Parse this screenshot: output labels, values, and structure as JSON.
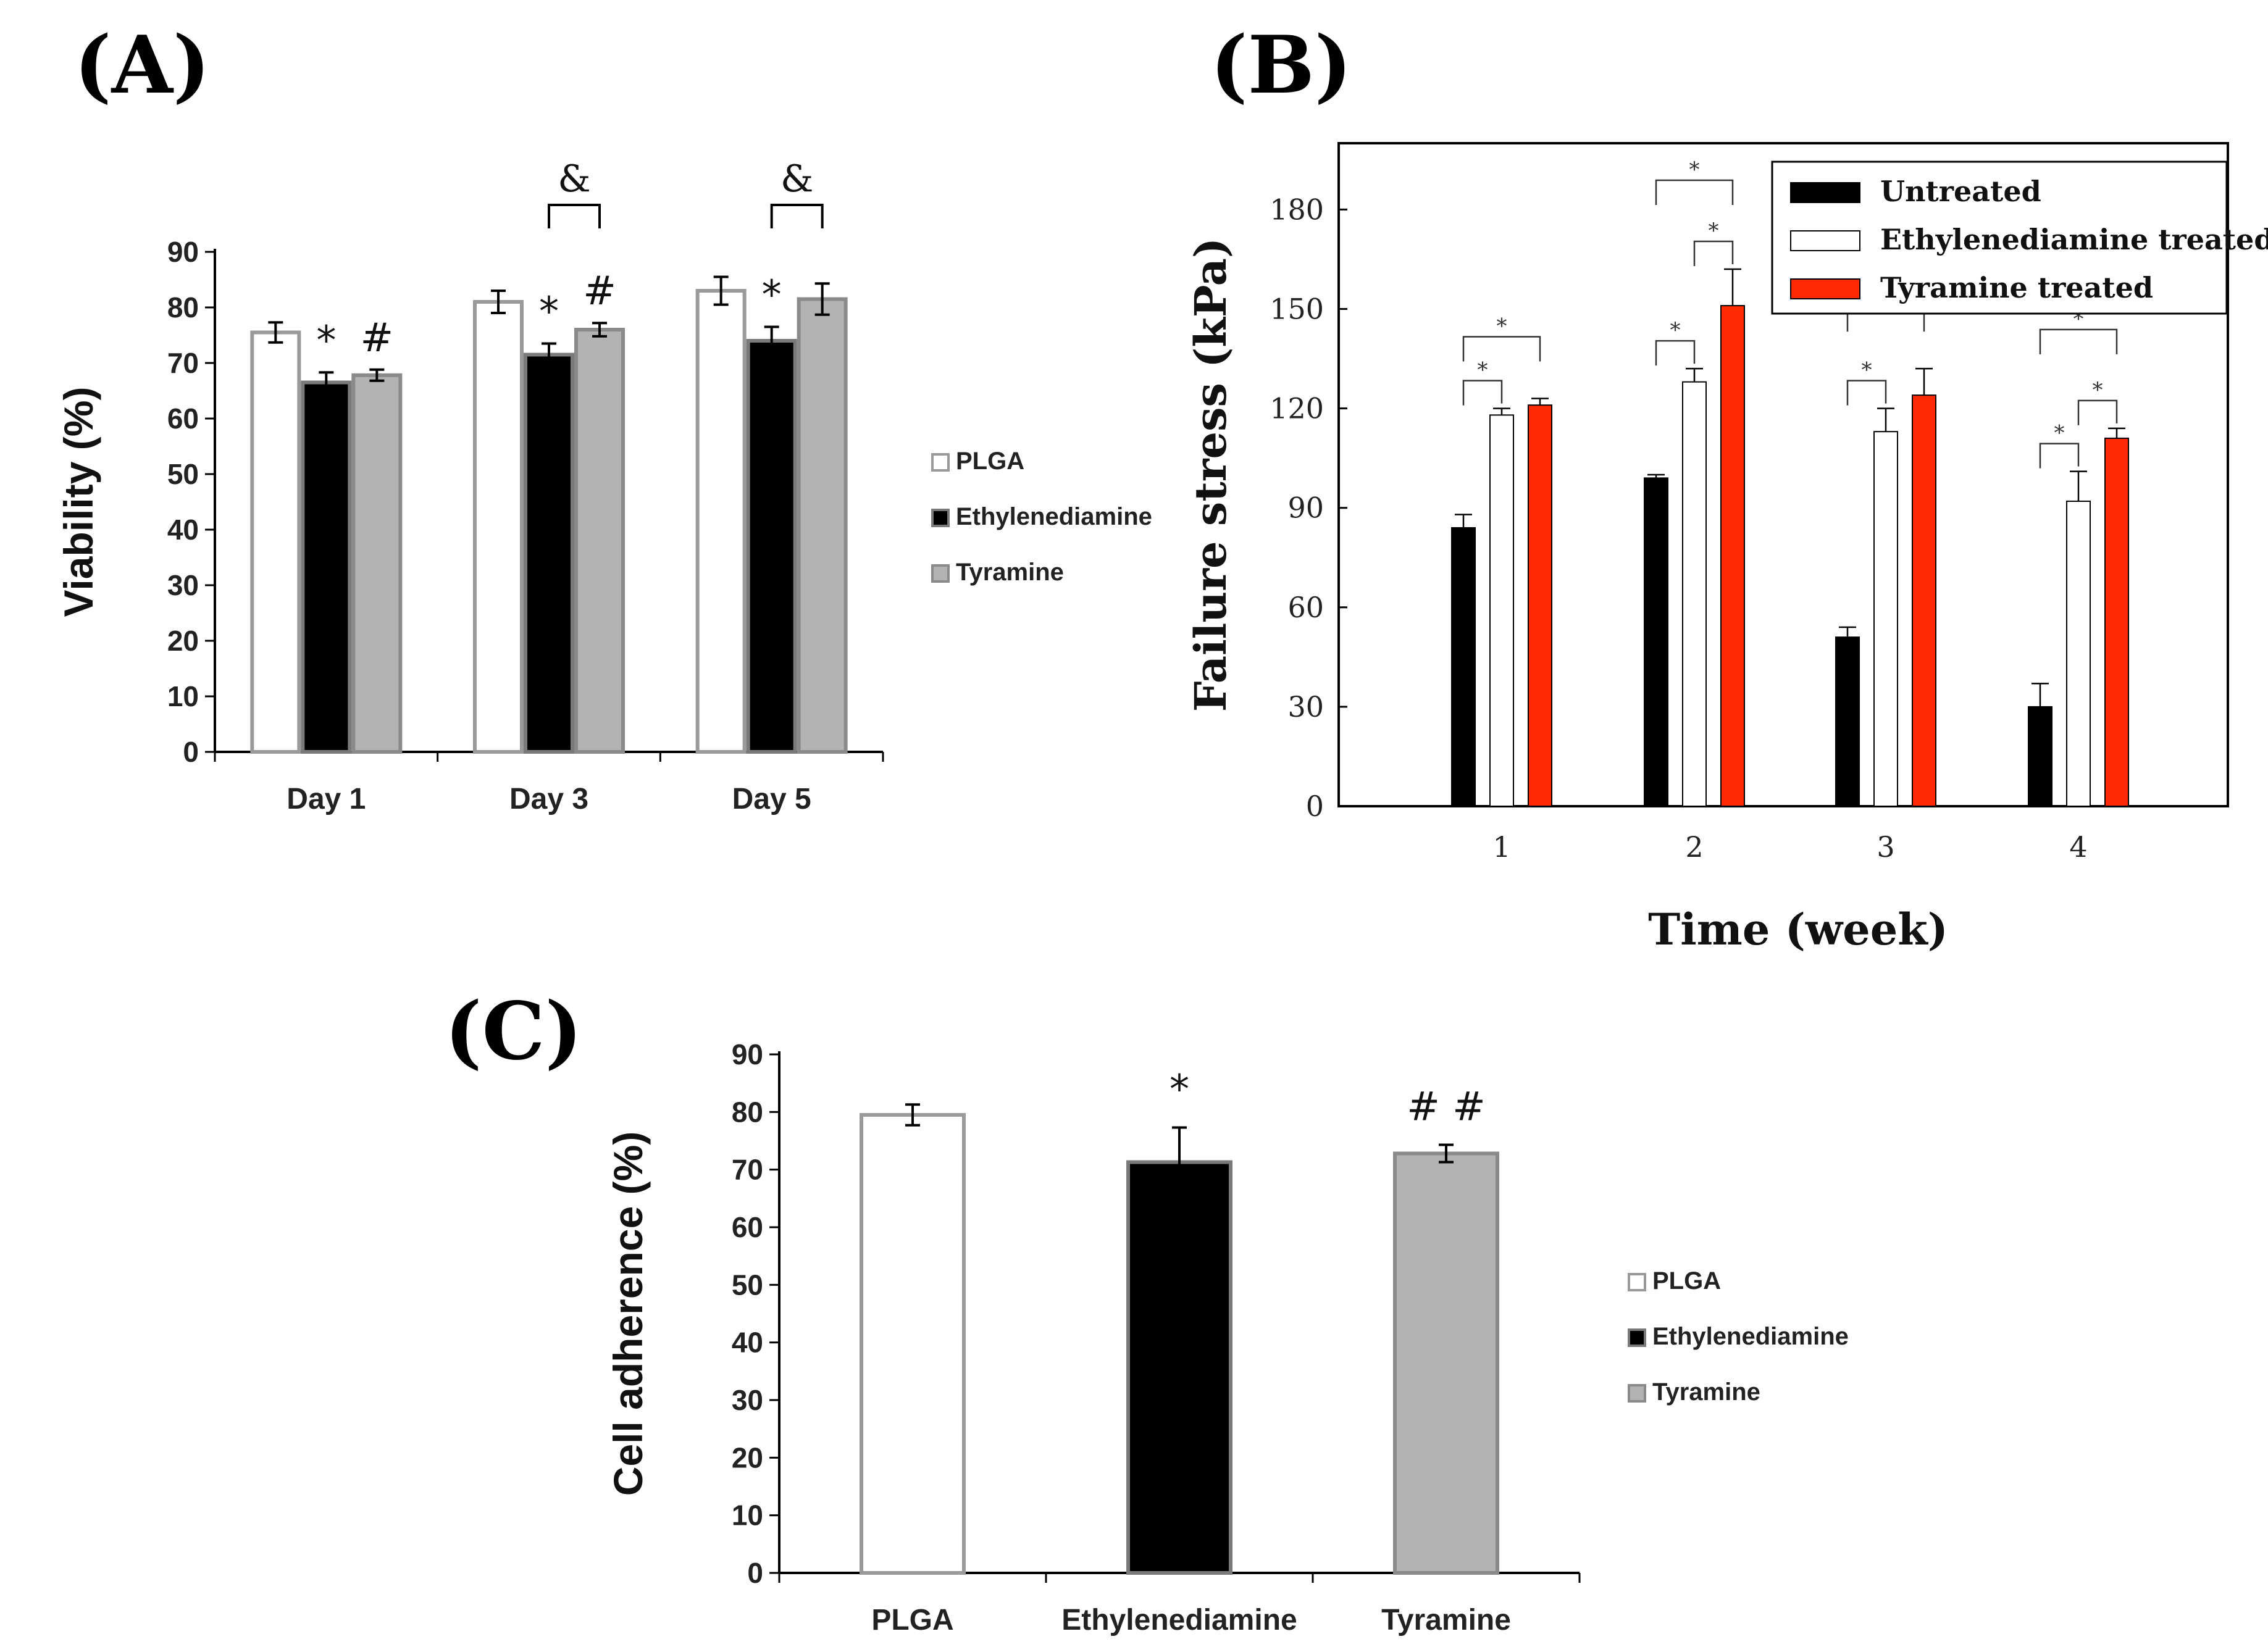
{
  "panels": {
    "a": {
      "label": "(A)"
    },
    "b": {
      "label": "(B)"
    },
    "c": {
      "label": "(C)"
    }
  },
  "chart_data": [
    {
      "id": "A",
      "type": "bar",
      "title": "",
      "xlabel": "",
      "ylabel": "Viability (%)",
      "ylim": [
        0,
        90
      ],
      "yticks": [
        0,
        10,
        20,
        30,
        40,
        50,
        60,
        70,
        80,
        90
      ],
      "categories": [
        "Day 1",
        "Day 3",
        "Day 5"
      ],
      "series": [
        {
          "name": "PLGA",
          "color": "#ffffff",
          "stroke": "#9a9a9a",
          "values": [
            75.5,
            81,
            83
          ],
          "errors": [
            1.8,
            2.0,
            2.5
          ]
        },
        {
          "name": "Ethylenediamine",
          "color": "#000000",
          "stroke": "#7a7a7a",
          "values": [
            66.5,
            71.5,
            74
          ],
          "errors": [
            1.8,
            2.0,
            2.5
          ]
        },
        {
          "name": "Tyramine",
          "color": "#b3b3b3",
          "stroke": "#8a8a8a",
          "values": [
            67.8,
            76,
            81.5
          ],
          "errors": [
            1.0,
            1.2,
            2.8
          ]
        }
      ],
      "legend": {
        "position": "right",
        "entries": [
          "PLGA",
          "Ethylenediamine",
          "Tyramine"
        ]
      },
      "annotations": {
        "symbols": [
          {
            "text": "*",
            "category": 0,
            "series": 1
          },
          {
            "text": "#",
            "category": 0,
            "series": 2
          },
          {
            "text": "*",
            "category": 1,
            "series": 1
          },
          {
            "text": "#",
            "category": 1,
            "series": 2
          },
          {
            "text": "*",
            "category": 2,
            "series": 1
          }
        ],
        "brackets": [
          {
            "text": "&",
            "category": 1,
            "from_series": 1,
            "to_series": 2
          },
          {
            "text": "&",
            "category": 2,
            "from_series": 1,
            "to_series": 2
          }
        ]
      }
    },
    {
      "id": "B",
      "type": "bar",
      "title": "",
      "xlabel": "Time (week)",
      "ylabel": "Failure stress (kPa)",
      "ylim": [
        0,
        200
      ],
      "yticks": [
        0,
        30,
        60,
        90,
        120,
        150,
        180
      ],
      "categories": [
        "1",
        "2",
        "3",
        "4"
      ],
      "series": [
        {
          "name": "Untreated",
          "color": "#000000",
          "stroke": "#000000",
          "values": [
            84,
            99,
            51,
            30
          ],
          "errors": [
            4,
            1,
            3,
            7
          ]
        },
        {
          "name": "Ethylenediamine treated",
          "color": "#ffffff",
          "stroke": "#000000",
          "values": [
            118,
            128,
            113,
            92
          ],
          "errors": [
            2,
            4,
            7,
            9
          ]
        },
        {
          "name": "Tyramine treated",
          "color": "#ff2a00",
          "stroke": "#000000",
          "values": [
            121,
            151,
            124,
            111
          ],
          "errors": [
            2,
            11,
            8,
            3
          ]
        }
      ],
      "legend": {
        "position": "top-right",
        "entries": [
          "Untreated",
          "Ethylenediamine treated",
          "Tyramine treated"
        ]
      },
      "annotations": {
        "brackets": [
          {
            "text": "*",
            "category": 0,
            "from_series": 0,
            "to_series": 1
          },
          {
            "text": "*",
            "category": 0,
            "from_series": 0,
            "to_series": 2
          },
          {
            "text": "*",
            "category": 1,
            "from_series": 0,
            "to_series": 1
          },
          {
            "text": "*",
            "category": 1,
            "from_series": 1,
            "to_series": 2
          },
          {
            "text": "*",
            "category": 1,
            "from_series": 0,
            "to_series": 2
          },
          {
            "text": "*",
            "category": 2,
            "from_series": 0,
            "to_series": 1
          },
          {
            "text": "*",
            "category": 2,
            "from_series": 0,
            "to_series": 2
          },
          {
            "text": "*",
            "category": 3,
            "from_series": 0,
            "to_series": 1
          },
          {
            "text": "*",
            "category": 3,
            "from_series": 1,
            "to_series": 2
          },
          {
            "text": "*",
            "category": 3,
            "from_series": 0,
            "to_series": 2
          }
        ]
      }
    },
    {
      "id": "C",
      "type": "bar",
      "title": "",
      "xlabel": "",
      "ylabel": "Cell adherence (%)",
      "ylim": [
        0,
        90
      ],
      "yticks": [
        0,
        10,
        20,
        30,
        40,
        50,
        60,
        70,
        80,
        90
      ],
      "categories": [
        "PLGA",
        "Ethylenediamine",
        "Tyramine"
      ],
      "values": [
        79.5,
        71.3,
        72.8
      ],
      "errors": [
        1.8,
        6.0,
        1.5
      ],
      "colors": [
        "#ffffff",
        "#000000",
        "#b3b3b3"
      ],
      "strokes": [
        "#9a9a9a",
        "#7a7a7a",
        "#8a8a8a"
      ],
      "legend": {
        "position": "right",
        "entries": [
          "PLGA",
          "Ethylenediamine",
          "Tyramine"
        ]
      },
      "annotations": {
        "symbols": [
          {
            "text": "*",
            "category": 1
          },
          {
            "text": "# #",
            "category": 2
          }
        ]
      }
    }
  ]
}
